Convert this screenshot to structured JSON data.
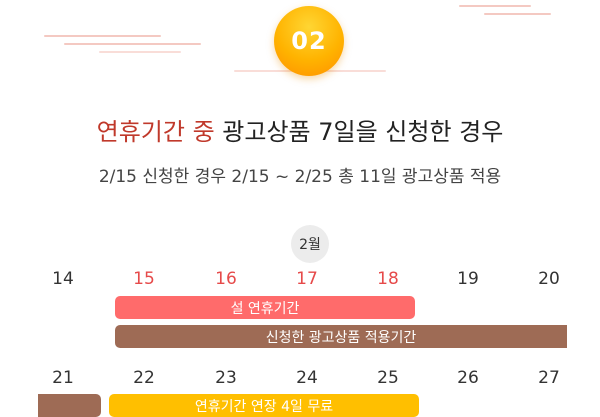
{
  "badge": {
    "number": "02"
  },
  "title": {
    "highlight": "연휴기간 중",
    "rest": " 광고상품 7일을 신청한 경우"
  },
  "subtitle": "2/15 신청한 경우 2/15 ~ 2/25 총 11일 광고상품 적용",
  "calendar": {
    "month": "2월",
    "week1": [
      "14",
      "15",
      "16",
      "17",
      "18",
      "19",
      "20"
    ],
    "week2": [
      "21",
      "22",
      "23",
      "24",
      "25",
      "26",
      "27"
    ]
  },
  "bars": {
    "holiday": "설 연휴기간",
    "applied": "신청한 광고상품 적용기간",
    "extension": "연휴기간 연장 4일 무료"
  },
  "colors": {
    "badge": "#ffb300",
    "holiday_text": "#e64a4a",
    "holiday_bar": "#ff6b6b",
    "applied_bar": "#9e6b55",
    "extension_bar": "#ffbf00",
    "title_highlight": "#c0392b"
  }
}
